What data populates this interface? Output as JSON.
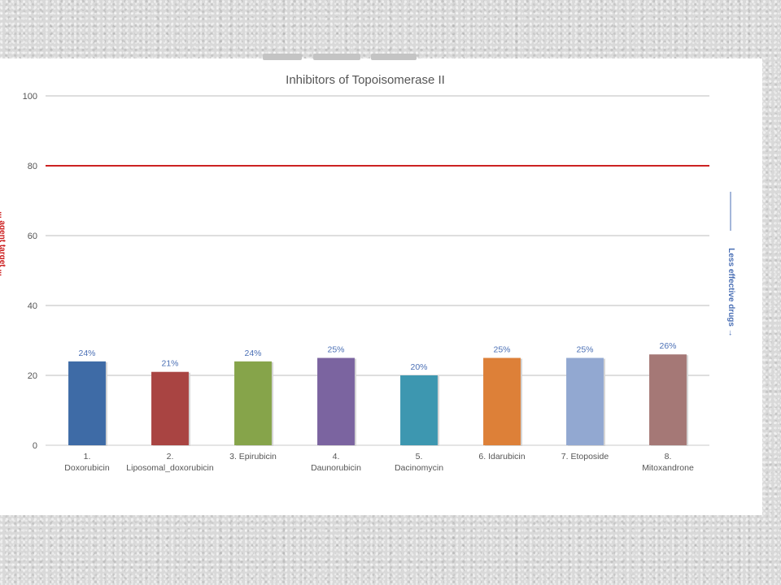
{
  "chart_data": {
    "type": "bar",
    "title": "Inhibitors of Topoisomerase II",
    "categories": [
      [
        "1.",
        "Doxorubicin"
      ],
      [
        "2.",
        "Liposomal_doxorubicin"
      ],
      [
        "3. Epirubicin"
      ],
      [
        "4.",
        "Daunorubicin"
      ],
      [
        "5.",
        "Dacinomycin"
      ],
      [
        "6. Idarubicin"
      ],
      [
        "7. Etoposide"
      ],
      [
        "8.",
        "Mitoxandrone"
      ]
    ],
    "values": [
      24,
      21,
      24,
      25,
      20,
      25,
      25,
      26
    ],
    "data_labels": [
      "24%",
      "21%",
      "24%",
      "25%",
      "20%",
      "25%",
      "25%",
      "26%"
    ],
    "bar_colors": [
      "#3e6ba6",
      "#a94442",
      "#86a44a",
      "#7b64a0",
      "#3d97b0",
      "#dd8038",
      "#92a8d1",
      "#a57876"
    ],
    "ylim": [
      0,
      100
    ],
    "yticks": [
      0,
      20,
      40,
      60,
      80,
      100
    ],
    "ytick_labels": [
      "0",
      "20",
      "40",
      "60",
      "80",
      "100"
    ],
    "reference_line": {
      "value": 80,
      "color": "#cc2222"
    },
    "grid": true,
    "left_side_label": "... agent target ...",
    "right_side_label": "Less effective drugs →"
  }
}
